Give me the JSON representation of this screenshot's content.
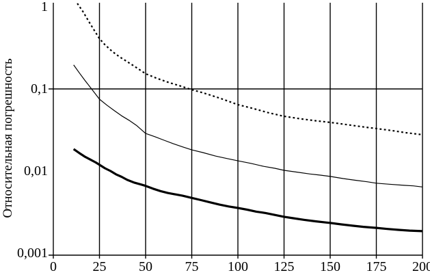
{
  "page": {
    "background_color": "#ffffff",
    "foreground_color": "#000000"
  },
  "chart_data": {
    "type": "line",
    "title": "",
    "xlabel": "",
    "ylabel": "Относительная погрешность",
    "y_scale": "log",
    "xlim": [
      0,
      200
    ],
    "ylim": [
      0.001,
      1
    ],
    "grid": {
      "vertical": true,
      "horizontal_values": [
        0.1
      ]
    },
    "legend_position": "none",
    "x_tick_values": [
      0,
      25,
      50,
      75,
      100,
      125,
      150,
      175,
      200
    ],
    "x_tick_labels": [
      "0",
      "25",
      "50",
      "75",
      "100",
      "125",
      "150",
      "175",
      "200"
    ],
    "y_tick_values": [
      1,
      0.1,
      0.01,
      0.001
    ],
    "y_tick_labels": [
      "1",
      "0,1",
      "0,01",
      "0,001"
    ],
    "series": [
      {
        "name": "upper-dotted-curve",
        "style": "dotted",
        "stroke_width": 2.2,
        "color": "#000000",
        "points": [
          [
            13,
            1.1
          ],
          [
            16,
            0.88
          ],
          [
            20,
            0.62
          ],
          [
            25,
            0.41
          ],
          [
            28,
            0.345
          ],
          [
            32,
            0.285
          ],
          [
            36,
            0.245
          ],
          [
            40,
            0.215
          ],
          [
            45,
            0.182
          ],
          [
            50,
            0.153
          ],
          [
            56,
            0.135
          ],
          [
            62,
            0.121
          ],
          [
            68,
            0.11
          ],
          [
            75,
            0.098
          ],
          [
            82,
            0.0885
          ],
          [
            90,
            0.0775
          ],
          [
            100,
            0.0643
          ],
          [
            108,
            0.058
          ],
          [
            117,
            0.051
          ],
          [
            125,
            0.0464
          ],
          [
            134,
            0.0432
          ],
          [
            142,
            0.041
          ],
          [
            150,
            0.0391
          ],
          [
            158,
            0.037
          ],
          [
            167,
            0.0347
          ],
          [
            175,
            0.0329
          ],
          [
            183,
            0.0312
          ],
          [
            191,
            0.0293
          ],
          [
            200,
            0.0277
          ]
        ]
      },
      {
        "name": "middle-thin-curve",
        "style": "solid",
        "stroke_width": 1.2,
        "color": "#000000",
        "points": [
          [
            11,
            0.196
          ],
          [
            14,
            0.158
          ],
          [
            17,
            0.128
          ],
          [
            20,
            0.105
          ],
          [
            25,
            0.075
          ],
          [
            29,
            0.0635
          ],
          [
            33,
            0.0545
          ],
          [
            37,
            0.047
          ],
          [
            41,
            0.0415
          ],
          [
            45,
            0.036
          ],
          [
            50,
            0.0287
          ],
          [
            55,
            0.0262
          ],
          [
            60,
            0.0237
          ],
          [
            65,
            0.0215
          ],
          [
            70,
            0.0197
          ],
          [
            75,
            0.0181
          ],
          [
            81,
            0.0168
          ],
          [
            88,
            0.0152
          ],
          [
            94,
            0.0142
          ],
          [
            100,
            0.0133
          ],
          [
            107,
            0.0124
          ],
          [
            114,
            0.0114
          ],
          [
            120,
            0.0108
          ],
          [
            125,
            0.0102
          ],
          [
            132,
            0.0097
          ],
          [
            139,
            0.0092
          ],
          [
            145,
            0.0089
          ],
          [
            150,
            0.0086
          ],
          [
            157,
            0.0081
          ],
          [
            164,
            0.0077
          ],
          [
            170,
            0.0074
          ],
          [
            175,
            0.0071
          ],
          [
            182,
            0.0069
          ],
          [
            190,
            0.0067
          ],
          [
            195,
            0.0066
          ],
          [
            200,
            0.0064
          ]
        ]
      },
      {
        "name": "lower-thick-curve",
        "style": "solid",
        "stroke_width": 3.2,
        "color": "#000000",
        "points": [
          [
            11,
            0.0185
          ],
          [
            14,
            0.0166
          ],
          [
            17,
            0.015
          ],
          [
            20,
            0.0138
          ],
          [
            23,
            0.0127
          ],
          [
            25,
            0.0119
          ],
          [
            28,
            0.0108
          ],
          [
            31,
            0.01
          ],
          [
            34,
            0.0091
          ],
          [
            37,
            0.0085
          ],
          [
            40,
            0.0078
          ],
          [
            44,
            0.0072
          ],
          [
            48,
            0.0068
          ],
          [
            50,
            0.0066
          ],
          [
            54,
            0.0061
          ],
          [
            58,
            0.0057
          ],
          [
            62,
            0.0054
          ],
          [
            66,
            0.0052
          ],
          [
            70,
            0.005
          ],
          [
            75,
            0.0047
          ],
          [
            80,
            0.00442
          ],
          [
            85,
            0.00415
          ],
          [
            90,
            0.0039
          ],
          [
            95,
            0.0037
          ],
          [
            100,
            0.00355
          ],
          [
            105,
            0.00338
          ],
          [
            110,
            0.0032
          ],
          [
            115,
            0.00308
          ],
          [
            120,
            0.00292
          ],
          [
            125,
            0.00277
          ],
          [
            130,
            0.00266
          ],
          [
            136,
            0.00254
          ],
          [
            142,
            0.00244
          ],
          [
            148,
            0.00236
          ],
          [
            150,
            0.00233
          ],
          [
            156,
            0.00224
          ],
          [
            162,
            0.00216
          ],
          [
            168,
            0.00209
          ],
          [
            175,
            0.00203
          ],
          [
            181,
            0.00197
          ],
          [
            187,
            0.00192
          ],
          [
            193,
            0.00188
          ],
          [
            200,
            0.00185
          ]
        ]
      }
    ]
  }
}
